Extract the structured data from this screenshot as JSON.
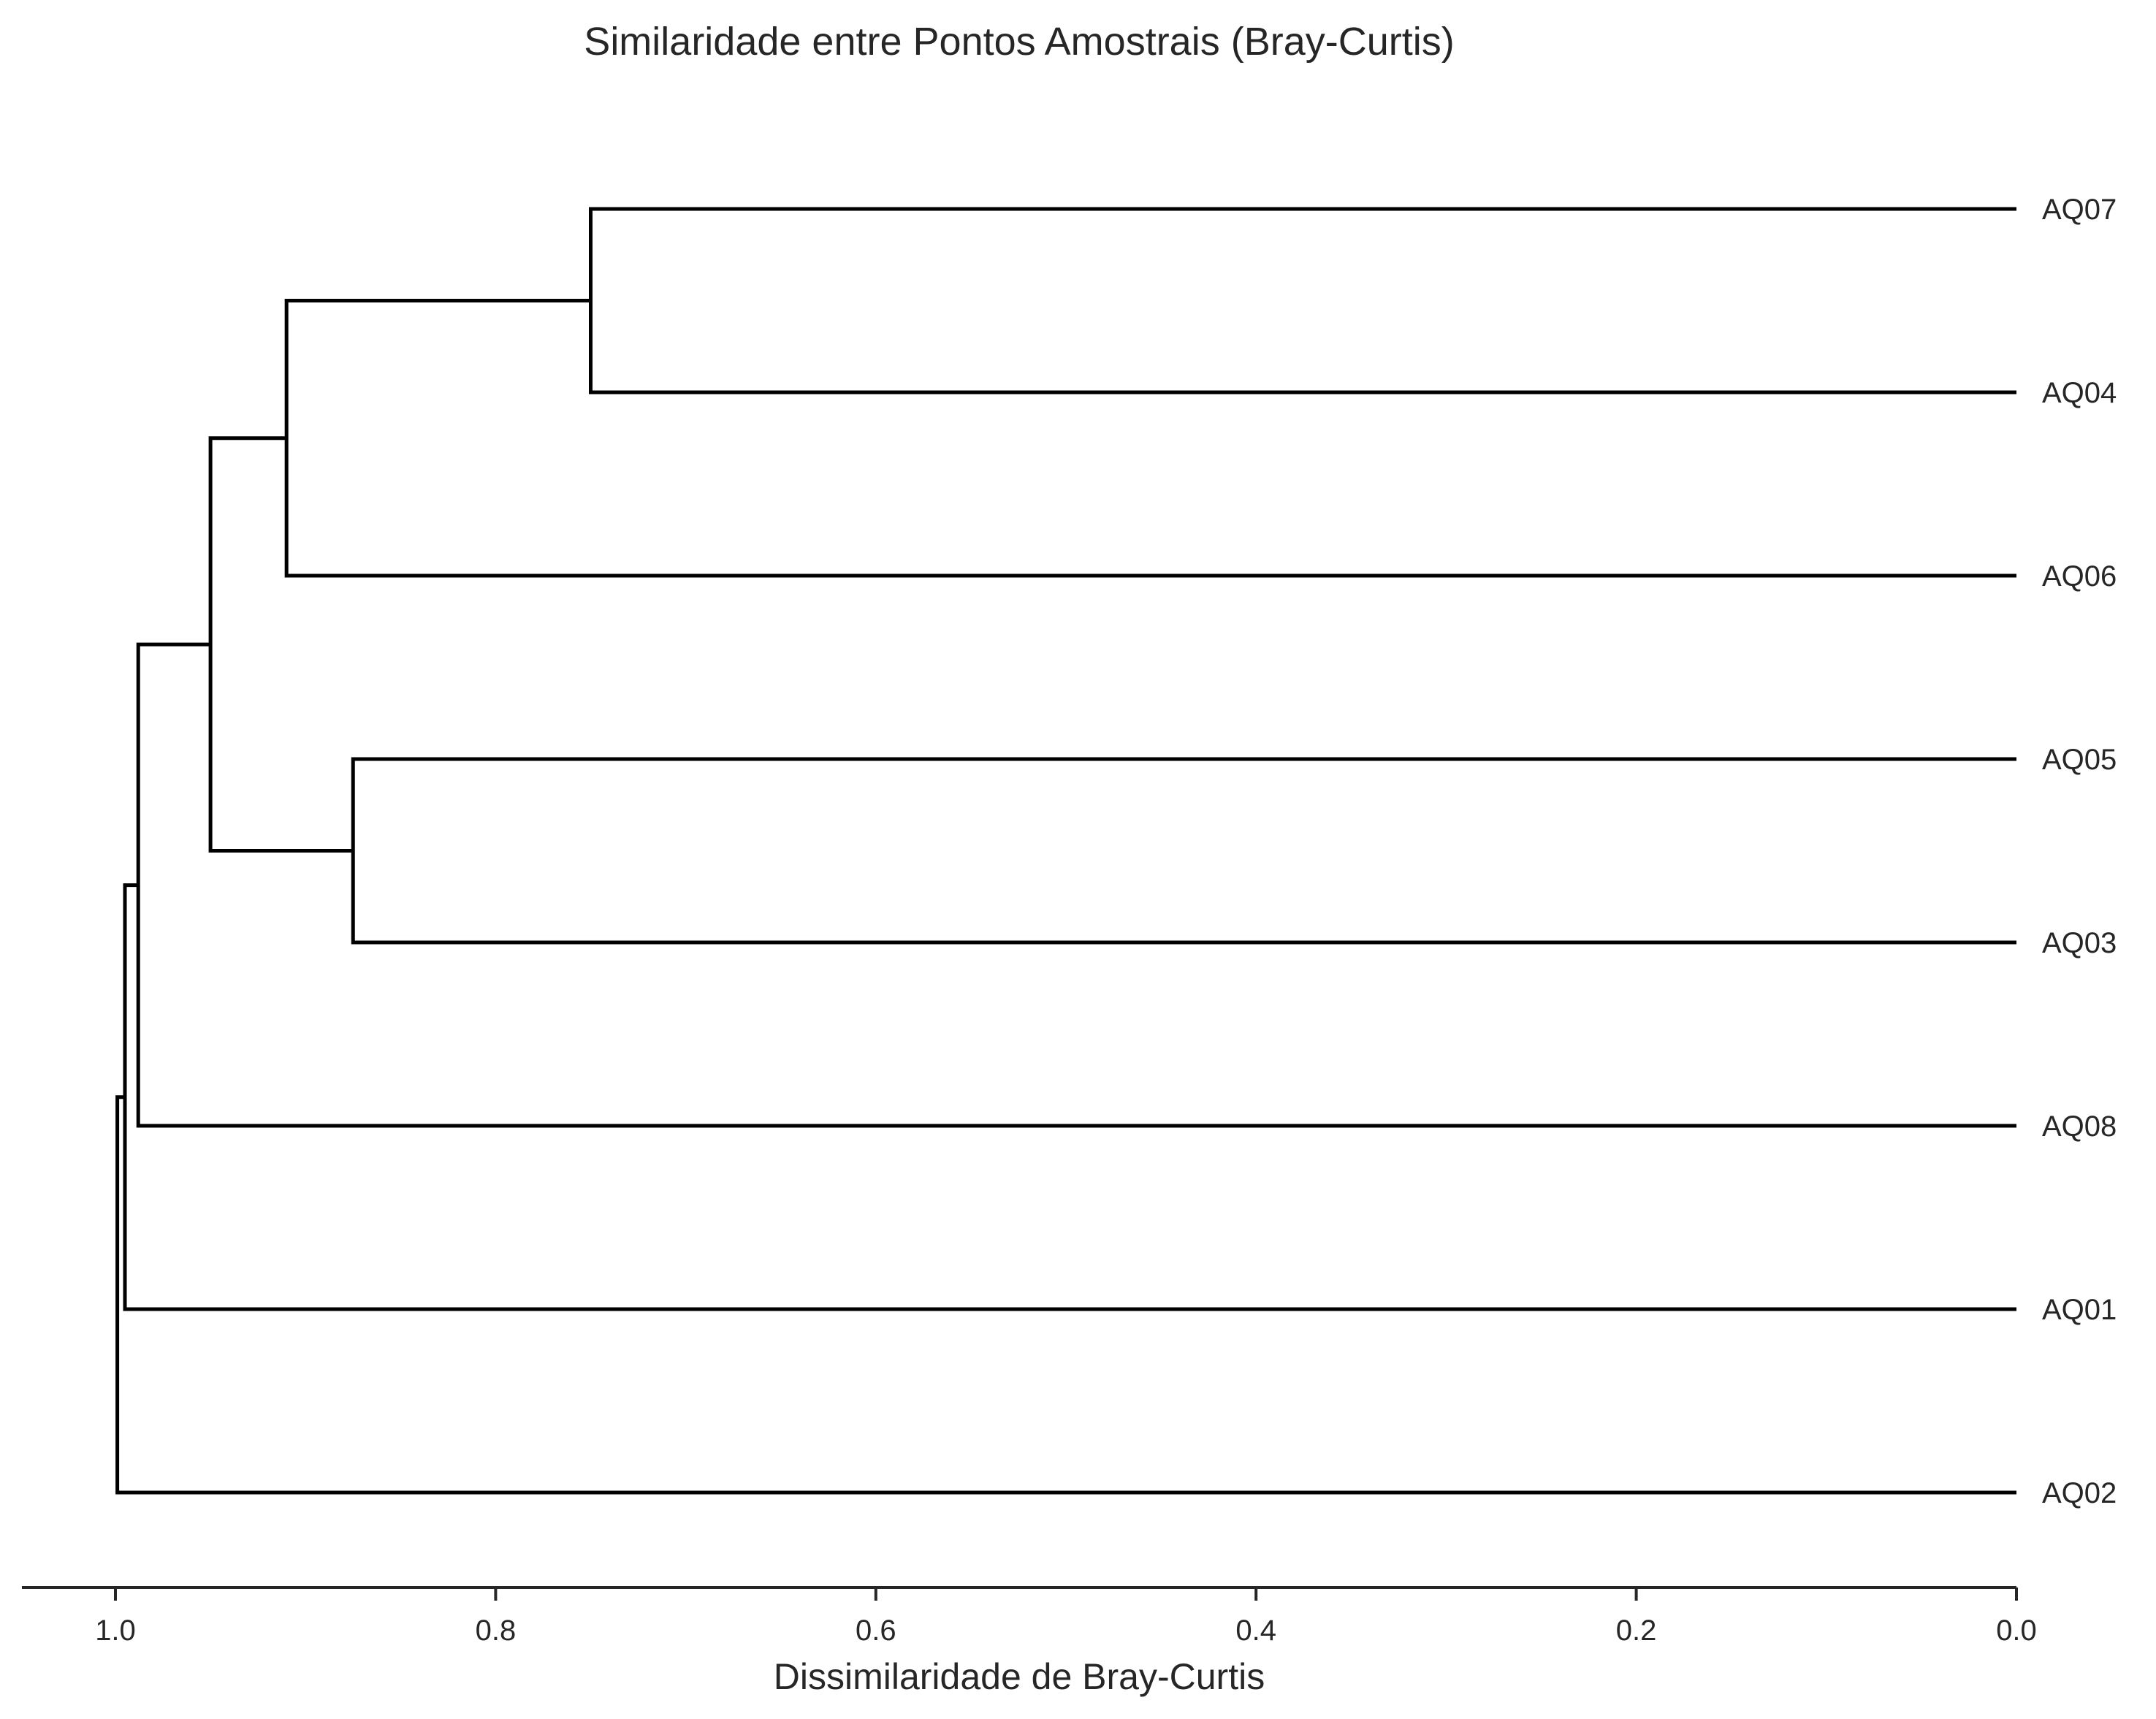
{
  "chart_data": {
    "type": "dendrogram",
    "title": "Similaridade entre Pontos Amostrais (Bray-Curtis)",
    "xlabel": "Dissimilaridade de Bray-Curtis",
    "ylabel": "",
    "orientation": "horizontal (leaves on right, root on left)",
    "xlim": [
      1.05,
      0.0
    ],
    "x_ticks": [
      {
        "value": 1.0,
        "label": "1.0"
      },
      {
        "value": 0.8,
        "label": "0.8"
      },
      {
        "value": 0.6,
        "label": "0.6"
      },
      {
        "value": 0.4,
        "label": "0.4"
      },
      {
        "value": 0.2,
        "label": "0.2"
      },
      {
        "value": 0.0,
        "label": "0.0"
      }
    ],
    "leaves": [
      "AQ07",
      "AQ04",
      "AQ06",
      "AQ05",
      "AQ03",
      "AQ08",
      "AQ01",
      "AQ02"
    ],
    "merges": [
      {
        "id": "c1",
        "children": [
          "AQ07",
          "AQ04"
        ],
        "height": 0.75
      },
      {
        "id": "c2",
        "children": [
          "AQ05",
          "AQ03"
        ],
        "height": 0.875
      },
      {
        "id": "c3",
        "children": [
          "c1",
          "AQ06"
        ],
        "height": 0.91
      },
      {
        "id": "c4",
        "children": [
          "c3",
          "c2"
        ],
        "height": 0.95
      },
      {
        "id": "c5",
        "children": [
          "c4",
          "AQ08"
        ],
        "height": 0.988
      },
      {
        "id": "c6",
        "children": [
          "c5",
          "AQ01"
        ],
        "height": 0.995
      },
      {
        "id": "c7",
        "children": [
          "c6",
          "AQ02"
        ],
        "height": 0.999
      }
    ],
    "grid": false,
    "line_color": "#000000"
  }
}
